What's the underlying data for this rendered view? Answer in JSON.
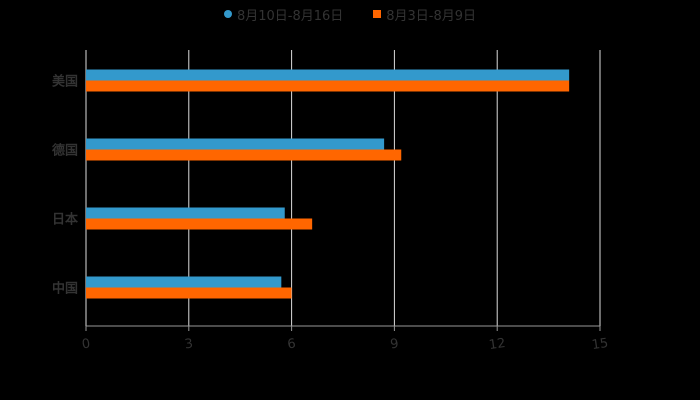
{
  "legend": [
    {
      "label": "8月10日-8月16日",
      "color": "#3399cc",
      "shape": "circle"
    },
    {
      "label": "8月3日-8月9日",
      "color": "#ff6600",
      "shape": "square"
    }
  ],
  "chart_data": {
    "type": "bar",
    "orientation": "horizontal",
    "title": "",
    "xlabel": "",
    "ylabel": "",
    "categories": [
      "美国",
      "德国",
      "日本",
      "中国"
    ],
    "series": [
      {
        "name": "8月10日-8月16日",
        "color": "#3399cc",
        "values": [
          14.1,
          8.7,
          5.8,
          5.7
        ]
      },
      {
        "name": "8月3日-8月9日",
        "color": "#ff6600",
        "values": [
          14.1,
          9.2,
          6.6,
          6.0
        ]
      }
    ],
    "xlim": [
      0,
      15
    ],
    "xticks": [
      0,
      3,
      6,
      9,
      12,
      15
    ],
    "grid": true,
    "legend_position": "top"
  }
}
